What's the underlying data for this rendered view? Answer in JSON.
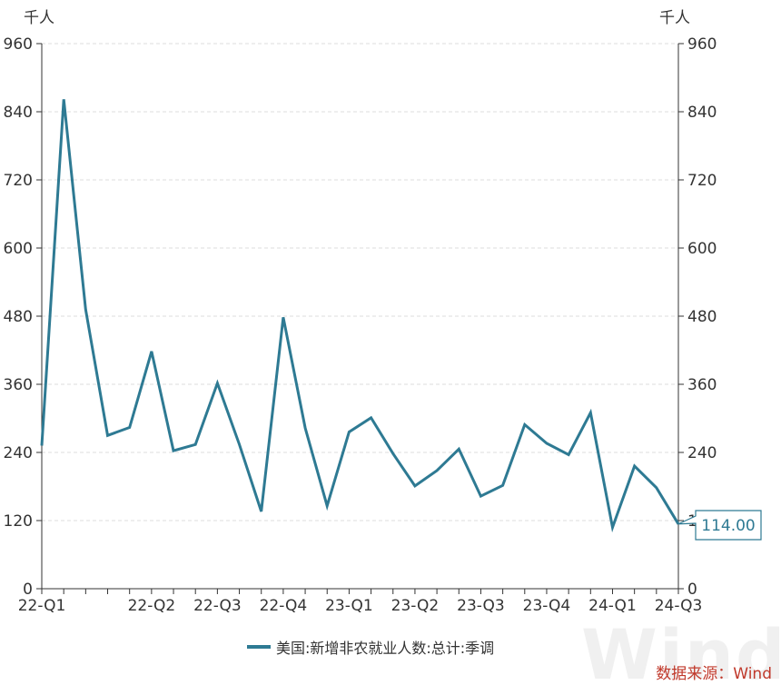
{
  "chart_data": {
    "type": "line",
    "unit_left": "千人",
    "unit_right": "千人",
    "ylim": [
      0,
      960
    ],
    "yticks": [
      0,
      120,
      240,
      360,
      480,
      600,
      720,
      840,
      960
    ],
    "grid": true,
    "x_tick_labels": [
      "22-Q1",
      "22-Q2",
      "22-Q3",
      "22-Q4",
      "23-Q1",
      "23-Q2",
      "23-Q3",
      "23-Q4",
      "24-Q1",
      "24-Q3"
    ],
    "series": [
      {
        "name": "美国:新增非农就业人数:总计:季调",
        "color": "#2e7a93",
        "values": [
          252,
          862,
          492,
          270,
          284,
          418,
          243,
          254,
          362,
          254,
          136,
          478,
          283,
          146,
          276,
          301,
          238,
          181,
          208,
          246,
          163,
          182,
          289,
          256,
          236,
          310,
          108,
          216,
          178,
          114
        ]
      }
    ],
    "last_value_label": "114.00",
    "legend_position": "bottom",
    "source": "数据来源：Wind"
  },
  "watermark": "Wind"
}
